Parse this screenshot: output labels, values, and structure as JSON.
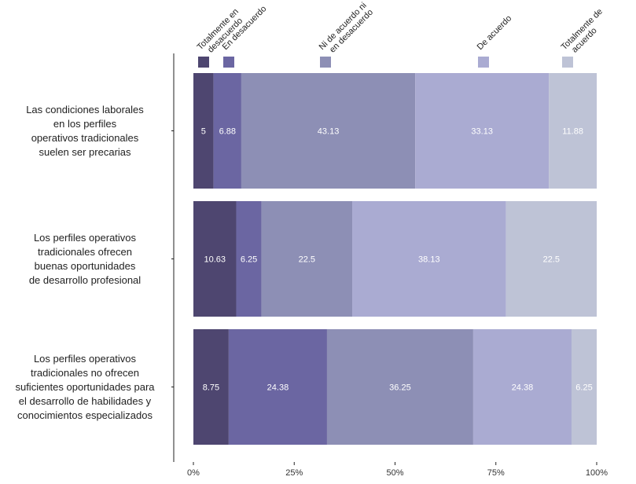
{
  "chart_data": {
    "type": "bar",
    "orientation": "horizontal",
    "stacked": true,
    "categories": [
      [
        "Las condiciones laborales",
        "en los perfiles",
        "operativos tradicionales",
        "suelen ser precarias"
      ],
      [
        "Los perfiles operativos",
        "tradicionales ofrecen",
        "buenas oportunidades",
        "de desarrollo profesional"
      ],
      [
        "Los perfiles operativos",
        "tradicionales no ofrecen",
        "suficientes oportunidades para",
        "el desarrollo de habilidades y",
        "conocimientos especializados"
      ]
    ],
    "series": [
      {
        "name": "Totalmente en desacuerdo",
        "color": "#4e4670",
        "values": [
          5,
          10.63,
          8.75
        ],
        "labels": [
          "5",
          "10.63",
          "8.75"
        ]
      },
      {
        "name": "En desacuerdo",
        "color": "#6b66a2",
        "values": [
          6.88,
          6.25,
          24.38
        ],
        "labels": [
          "6.88",
          "6.25",
          "24.38"
        ]
      },
      {
        "name": "Ni de acuerdo ni en desacuerdo",
        "color": "#8d8fb5",
        "values": [
          43.13,
          22.5,
          36.25
        ],
        "labels": [
          "43.13",
          "22.5",
          "36.25"
        ]
      },
      {
        "name": "De acuerdo",
        "color": "#aaabd2",
        "values": [
          33.13,
          38.13,
          24.38
        ],
        "labels": [
          "33.13",
          "38.13",
          "24.38"
        ]
      },
      {
        "name": "Totalmente de acuerdo",
        "color": "#bec3d6",
        "values": [
          11.88,
          22.5,
          6.25
        ],
        "labels": [
          "11.88",
          "22.5",
          "6.25"
        ]
      }
    ],
    "legend_labels": [
      [
        "Totalmente en",
        "desacuerdo"
      ],
      [
        "En desacuerdo"
      ],
      [
        "Ni de acuerdo ni",
        "en desacuerdo"
      ],
      [
        "De acuerdo"
      ],
      [
        "Totalmente de",
        "acuerdo"
      ]
    ],
    "xlim": [
      0,
      100
    ],
    "xticks": [
      "0%",
      "25%",
      "50%",
      "75%",
      "100%"
    ],
    "legend_position": "top",
    "grid": false
  }
}
